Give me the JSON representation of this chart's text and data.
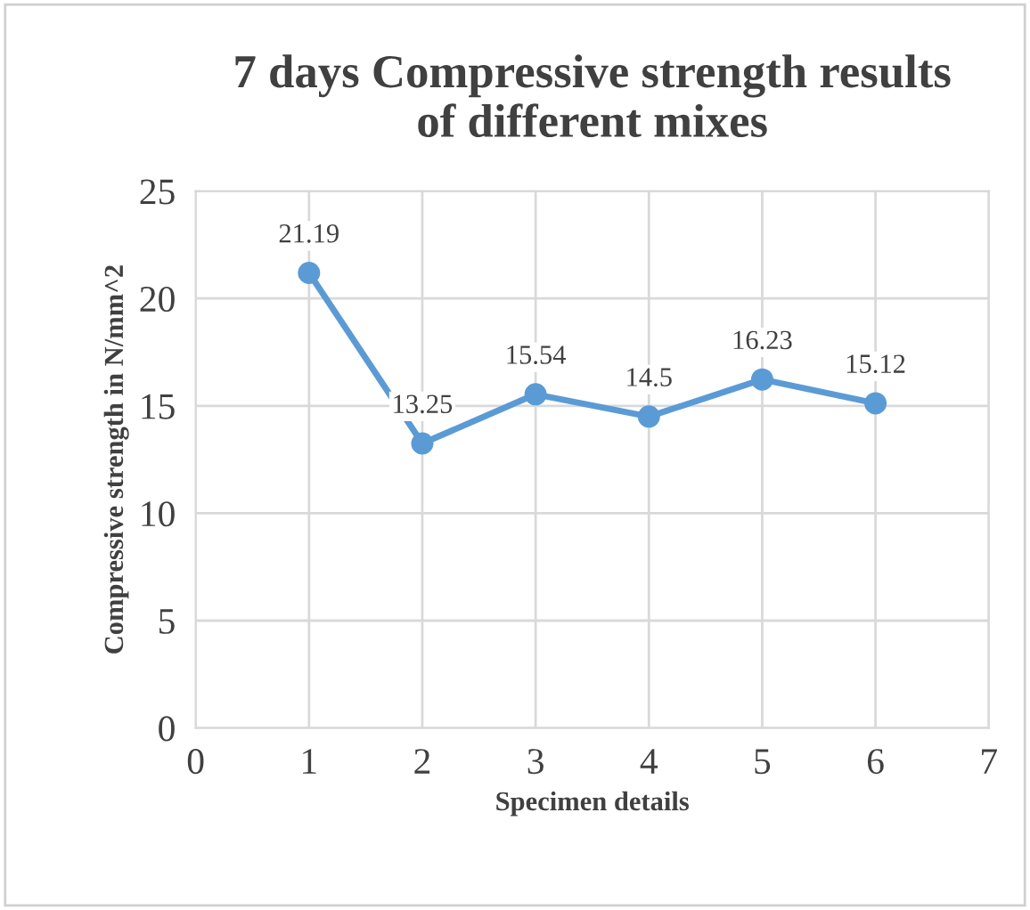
{
  "chart_data": {
    "type": "line",
    "title": "7 days Compressive strength results\nof different mixes",
    "xlabel": "Specimen details",
    "ylabel": "Compressive strength in N/mm^2",
    "x": [
      1,
      2,
      3,
      4,
      5,
      6
    ],
    "series": [
      {
        "color": "#5b9bd5",
        "values": [
          21.19,
          13.25,
          15.54,
          14.5,
          16.23,
          15.12
        ]
      }
    ],
    "xlim": [
      0,
      7
    ],
    "xticks": [
      0,
      1,
      2,
      3,
      4,
      5,
      6,
      7
    ],
    "ylim": [
      0,
      25
    ],
    "yticks": [
      0,
      5,
      10,
      15,
      20,
      25
    ],
    "grid": true,
    "marker": "circle",
    "line_style": "solid",
    "data_labels": true
  }
}
